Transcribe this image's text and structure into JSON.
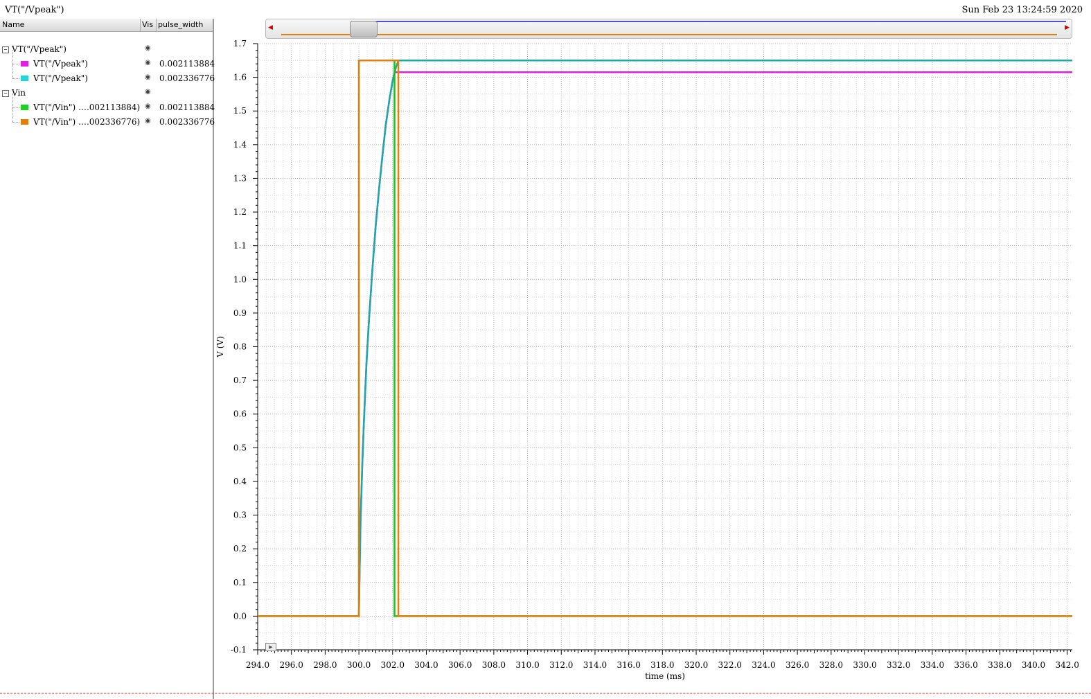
{
  "header": {
    "title": "VT(\"/Vpeak\")",
    "timestamp": "Sun Feb 23 13:24:59 2020"
  },
  "tree_header": {
    "name": "Name",
    "vis": "Vis",
    "param": "pulse_width"
  },
  "tree": [
    {
      "label": "VT(\"/Vpeak\")",
      "group": true,
      "value": ""
    },
    {
      "label": "VT(\"/Vpeak\")",
      "group": false,
      "color": "#e020e0",
      "value": "0.002113884"
    },
    {
      "label": "VT(\"/Vpeak\")",
      "group": false,
      "color": "#20d8d8",
      "value": "0.002336776"
    },
    {
      "label": "Vin",
      "group": true,
      "value": ""
    },
    {
      "label": "VT(\"/Vin\") ….002113884)",
      "group": false,
      "color": "#20d020",
      "value": "0.002113884"
    },
    {
      "label": "VT(\"/Vin\") ….002336776)",
      "group": false,
      "color": "#e08010",
      "value": "0.002336776"
    }
  ],
  "icons": {
    "expander": "minus-box-icon",
    "visibility": "eye-icon"
  },
  "chart_data": {
    "type": "line",
    "xlabel": "time (ms)",
    "ylabel": "V (V)",
    "xlim": [
      294.0,
      342.3
    ],
    "ylim": [
      -0.1,
      1.7
    ],
    "x_ticks": [
      "294.0",
      "296.0",
      "298.0",
      "300.0",
      "302.0",
      "304.0",
      "306.0",
      "308.0",
      "310.0",
      "312.0",
      "314.0",
      "316.0",
      "318.0",
      "320.0",
      "322.0",
      "324.0",
      "326.0",
      "328.0",
      "330.0",
      "332.0",
      "334.0",
      "336.0",
      "338.0",
      "340.0",
      "342.0"
    ],
    "y_ticks": [
      "-0.1",
      "0.0",
      "0.1",
      "0.2",
      "0.3",
      "0.4",
      "0.5",
      "0.6",
      "0.7",
      "0.8",
      "0.9",
      "1.0",
      "1.1",
      "1.2",
      "1.3",
      "1.4",
      "1.5",
      "1.6",
      "1.7"
    ],
    "grid": true,
    "series": [
      {
        "name": "VT(\"/Vpeak\") 0.002113884",
        "color": "#e020e0",
        "x": [
          300.0,
          300.05,
          300.1,
          300.2,
          300.3,
          300.45,
          300.6,
          300.8,
          301.0,
          301.2,
          301.4,
          301.6,
          301.8,
          302.0,
          302.11,
          302.2,
          342.3
        ],
        "y": [
          0.0,
          0.15,
          0.28,
          0.45,
          0.58,
          0.75,
          0.88,
          1.03,
          1.16,
          1.27,
          1.37,
          1.46,
          1.53,
          1.59,
          1.615,
          1.615,
          1.615
        ]
      },
      {
        "name": "VT(\"/Vpeak\") 0.002336776",
        "color": "#1aa8a8",
        "x": [
          300.0,
          300.05,
          300.1,
          300.2,
          300.3,
          300.45,
          300.6,
          300.8,
          301.0,
          301.2,
          301.4,
          301.6,
          301.8,
          302.0,
          302.2,
          302.34,
          342.3
        ],
        "y": [
          0.0,
          0.15,
          0.28,
          0.45,
          0.58,
          0.75,
          0.88,
          1.03,
          1.16,
          1.27,
          1.37,
          1.46,
          1.53,
          1.59,
          1.63,
          1.65,
          1.65
        ]
      },
      {
        "name": "VT(\"/Vin\") 0.002113884",
        "color": "#20c020",
        "x": [
          294.0,
          300.0,
          300.0,
          302.11,
          302.11,
          342.3
        ],
        "y": [
          0.0,
          0.0,
          1.65,
          1.65,
          0.0,
          0.0
        ]
      },
      {
        "name": "VT(\"/Vin\") 0.002336776",
        "color": "#e08010",
        "x": [
          294.0,
          300.0,
          300.0,
          302.34,
          302.34,
          342.3
        ],
        "y": [
          0.0,
          0.0,
          1.65,
          1.65,
          0.0,
          0.0
        ]
      }
    ]
  }
}
